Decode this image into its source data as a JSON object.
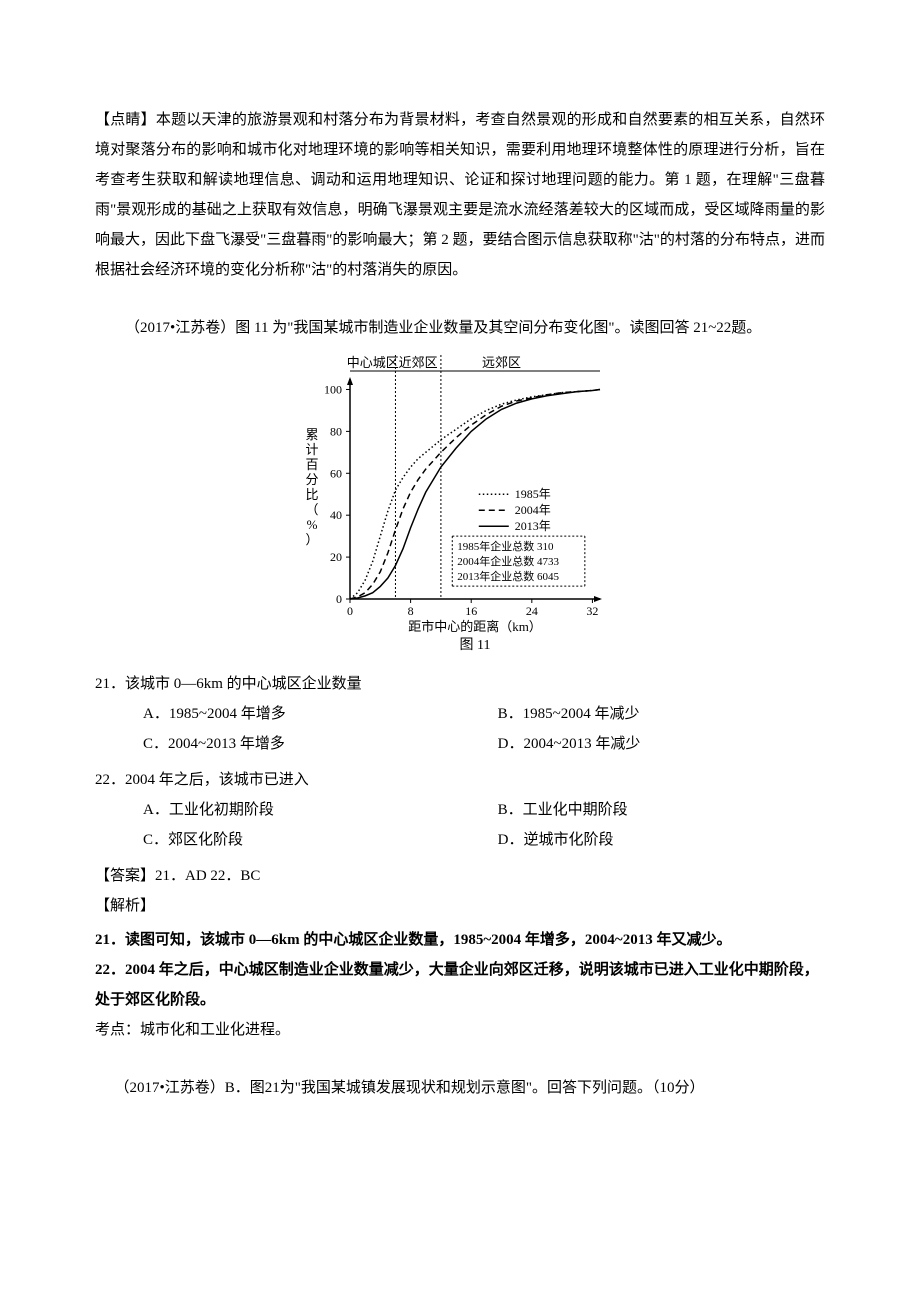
{
  "p1": "【点睛】本题以天津的旅游景观和村落分布为背景材料，考查自然景观的形成和自然要素的相互关系，自然环境对聚落分布的影响和城市化对地理环境的影响等相关知识，需要利用地理环境整体性的原理进行分析，旨在考查考生获取和解读地理信息、调动和运用地理知识、论证和探讨地理问题的能力。第 1 题，在理解\"三盘暮雨\"景观形成的基础之上获取有效信息，明确飞瀑景观主要是流水流经落差较大的区域而成，受区域降雨量的影响最大，因此下盘飞瀑受\"三盘暮雨\"的影响最大；第 2 题，要结合图示信息获取称\"沽\"的村落的分布特点，进而根据社会经济环境的变化分析称\"沽\"的村落消失的原因。",
  "intro1": "（2017•江苏卷）图 11 为\"我国某城市制造业企业数量及其空间分布变化图\"。读图回答 21~22题。",
  "chart": {
    "title_labels": [
      "中心城区",
      "近郊区",
      "远郊区"
    ],
    "y_axis_label": "累计百分比（%）",
    "x_axis_label": "距市中心的距离（km）",
    "figure_label": "图 11",
    "x_ticks": [
      "0",
      "8",
      "16",
      "24",
      "32"
    ],
    "y_ticks": [
      "0",
      "20",
      "40",
      "60",
      "80",
      "100"
    ],
    "x_range": [
      0,
      33
    ],
    "y_range": [
      0,
      105
    ],
    "vertical_dividers": [
      6,
      12
    ],
    "legend_years": [
      "1985年",
      "2004年",
      "2013年"
    ],
    "annotations": [
      "1985年企业总数  310",
      "2004年企业总数  4733",
      "2013年企业总数  6045"
    ],
    "series": {
      "1985": {
        "style": "dotted",
        "color": "#000000",
        "points": [
          [
            0,
            0
          ],
          [
            1,
            3
          ],
          [
            2,
            9
          ],
          [
            3,
            18
          ],
          [
            4,
            30
          ],
          [
            5,
            42
          ],
          [
            6,
            52
          ],
          [
            7,
            58
          ],
          [
            8,
            63
          ],
          [
            9,
            67
          ],
          [
            10,
            70
          ],
          [
            12,
            76
          ],
          [
            14,
            81
          ],
          [
            16,
            86
          ],
          [
            18,
            90
          ],
          [
            20,
            93
          ],
          [
            22,
            95
          ],
          [
            24,
            96.5
          ],
          [
            26,
            97.5
          ],
          [
            28,
            98.5
          ],
          [
            30,
            99
          ],
          [
            32,
            99.5
          ],
          [
            33,
            100
          ]
        ]
      },
      "2004": {
        "style": "dashed",
        "color": "#000000",
        "points": [
          [
            0,
            0
          ],
          [
            1,
            1
          ],
          [
            2,
            3
          ],
          [
            3,
            7
          ],
          [
            4,
            13
          ],
          [
            5,
            22
          ],
          [
            6,
            33
          ],
          [
            7,
            43
          ],
          [
            8,
            51
          ],
          [
            9,
            57
          ],
          [
            10,
            62
          ],
          [
            12,
            70
          ],
          [
            14,
            77
          ],
          [
            16,
            83
          ],
          [
            18,
            88
          ],
          [
            20,
            92
          ],
          [
            22,
            94.5
          ],
          [
            24,
            96
          ],
          [
            26,
            97.5
          ],
          [
            28,
            98.5
          ],
          [
            30,
            99
          ],
          [
            32,
            99.5
          ],
          [
            33,
            100
          ]
        ]
      },
      "2013": {
        "style": "solid",
        "color": "#000000",
        "points": [
          [
            0,
            0
          ],
          [
            1,
            0.5
          ],
          [
            2,
            1.5
          ],
          [
            3,
            3
          ],
          [
            4,
            6
          ],
          [
            5,
            10
          ],
          [
            6,
            16
          ],
          [
            7,
            24
          ],
          [
            8,
            34
          ],
          [
            9,
            43
          ],
          [
            10,
            51
          ],
          [
            12,
            63
          ],
          [
            14,
            72
          ],
          [
            16,
            80
          ],
          [
            18,
            86
          ],
          [
            20,
            90.5
          ],
          [
            22,
            93.5
          ],
          [
            24,
            95.5
          ],
          [
            26,
            97
          ],
          [
            28,
            98
          ],
          [
            30,
            99
          ],
          [
            32,
            99.5
          ],
          [
            33,
            100
          ]
        ]
      }
    },
    "colors": {
      "axis": "#000000",
      "text": "#000000",
      "divider": "#000000",
      "annotation_box": "#000000"
    },
    "font_size_axis": 12,
    "font_size_label": 13
  },
  "q21": {
    "stem": "21．该城市 0—6km 的中心城区企业数量",
    "a": "A．1985~2004 年增多",
    "b": "B．1985~2004 年减少",
    "c": "C．2004~2013 年增多",
    "d": "D．2004~2013 年减少"
  },
  "q22": {
    "stem": "22．2004 年之后，该城市已进入",
    "a": "A．工业化初期阶段",
    "b": "B．工业化中期阶段",
    "c": "C．郊区化阶段",
    "d": "D．逆城市化阶段"
  },
  "answers": "【答案】21．AD  22．BC",
  "jiexi": "【解析】",
  "a21": "21．读图可知，该城市 0—6km 的中心城区企业数量，1985~2004 年增多，2004~2013 年又减少。",
  "a22": "22．2004 年之后，中心城区制造业企业数量减少，大量企业向郊区迁移，说明该城市已进入工业化中期阶段，处于郊区化阶段。",
  "kaodian": "考点：城市化和工业化进程。",
  "intro2": "（2017•江苏卷）B．图21为\"我国某城镇发展现状和规划示意图\"。回答下列问题。（10分）"
}
